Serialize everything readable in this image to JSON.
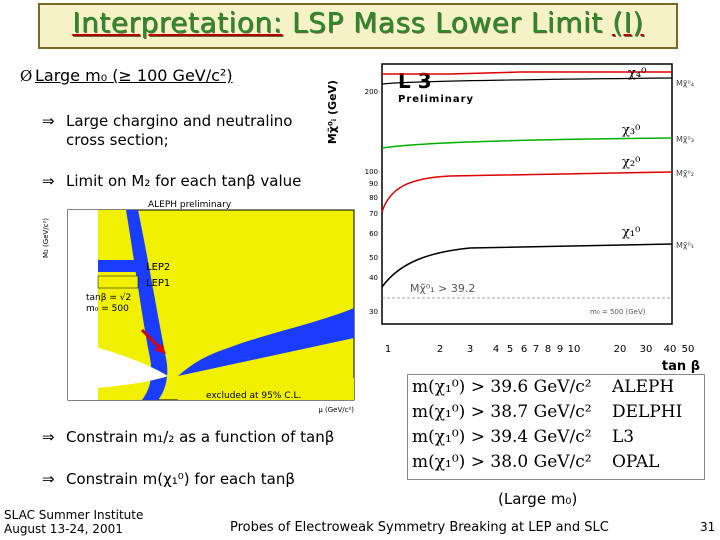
{
  "title": {
    "part1": "Interpretation:",
    "part2": " LSP Mass Lower Limit ",
    "part3": "(I)"
  },
  "bullets": {
    "b1": "Large m₀ (≥ 100 GeV/c²)",
    "b2_line1": "Large chargino and neutralino",
    "b2_line2": "cross section;",
    "b3": "Limit on M₂ for each tanβ value",
    "b4": "Constrain m₁/₂ as a function of tanβ",
    "b5": "Constrain m(χ₁⁰) for each tanβ",
    "arrow": "⇒",
    "mark": "Ø"
  },
  "l3_chart": {
    "logo": "L 3",
    "prelim": "Preliminary",
    "ylabel": "Mχ̃⁰ᵢ (GeV)",
    "xlabel": "tan β",
    "yticks": [
      "200",
      "100",
      "90",
      "80",
      "70",
      "60",
      "50",
      "40",
      "30"
    ],
    "xticks": [
      "1",
      "2",
      "3",
      "4",
      "5",
      "6",
      "7",
      "8",
      "9",
      "10",
      "20",
      "30",
      "40",
      "50"
    ],
    "labels": {
      "chi4": "χ₄⁰",
      "chi3": "χ₃⁰",
      "chi2": "χ₂⁰",
      "chi1": "χ₁⁰"
    },
    "annot": "Mχ̃⁰₁ > 39.2",
    "m0": "m₀ = 500 (GeV)",
    "right_labels": [
      "Mχ̃⁰₄",
      "Mχ̃⁰₃",
      "Mχ̃⁰₂",
      "Mχ̃⁰₁"
    ]
  },
  "aleph": {
    "title": "ALEPH preliminary",
    "legend1": "LEP2",
    "legend2": "LEP1",
    "params1": "tanβ = √2",
    "params2": "m₀ = 500",
    "excluded": "excluded at 95% C.L.",
    "ylabel": "M₂ (GeV/c²)",
    "xlabel": "μ (GeV/c²)"
  },
  "limits": [
    {
      "lhs": "m(χ₁⁰)",
      "val": "> 39.6 GeV/c²",
      "exp": "ALEPH"
    },
    {
      "lhs": "m(χ₁⁰)",
      "val": "> 38.7 GeV/c²",
      "exp": "DELPHI"
    },
    {
      "lhs": "m(χ₁⁰)",
      "val": "> 39.4 GeV/c²",
      "exp": "L3"
    },
    {
      "lhs": "m(χ₁⁰)",
      "val": "> 38.0 GeV/c²",
      "exp": "OPAL"
    }
  ],
  "limits_note": "(Large m₀)",
  "footer": {
    "inst1": "SLAC Summer Institute",
    "inst2": "August 13-24, 2001",
    "talk": "Probes of Electroweak Symmetry Breaking at LEP and SLC",
    "page": "31"
  },
  "colors": {
    "green_title": "#2a8a2a",
    "red": "#e00000",
    "green": "#00b000",
    "blue": "#1a3cff",
    "yellow": "#f0f000"
  }
}
